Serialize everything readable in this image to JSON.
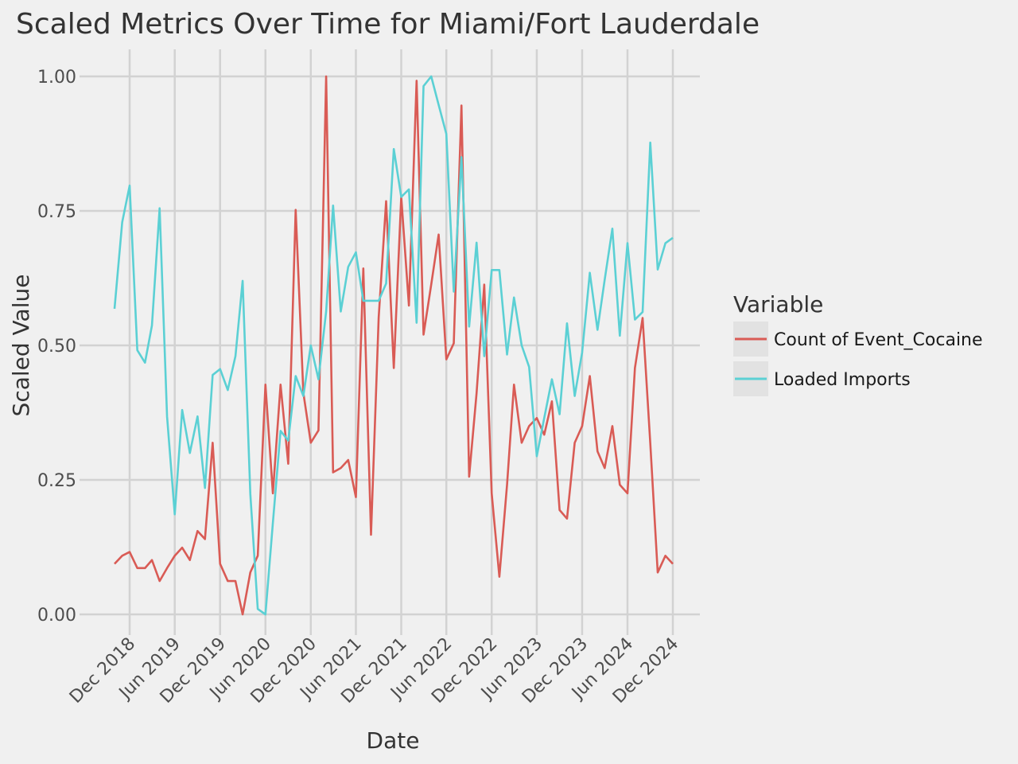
{
  "chart_data": {
    "type": "line",
    "title": "Scaled Metrics Over Time for Miami/Fort Lauderdale",
    "xlabel": "Date",
    "ylabel": "Scaled Value",
    "ylim": [
      0,
      1
    ],
    "yticks": [
      0,
      0.25,
      0.5,
      0.75,
      1
    ],
    "ytick_labels": [
      "0.00",
      "0.25",
      "0.50",
      "0.75",
      "1.00"
    ],
    "xticks": [
      "2018-12-01",
      "2019-06-01",
      "2019-12-01",
      "2020-06-01",
      "2020-12-01",
      "2021-06-01",
      "2021-12-01",
      "2022-06-01",
      "2022-12-01",
      "2023-06-01",
      "2023-12-01",
      "2024-06-01",
      "2024-12-01"
    ],
    "xtick_labels": [
      "Dec 2018",
      "Jun 2019",
      "Dec 2019",
      "Jun 2020",
      "Dec 2020",
      "Jun 2021",
      "Dec 2021",
      "Jun 2022",
      "Dec 2022",
      "Jun 2023",
      "Dec 2023",
      "Jun 2024",
      "Dec 2024"
    ],
    "grid": true,
    "legend": {
      "title": "Variable",
      "position": "right"
    },
    "x": [
      "2018-10-01",
      "2018-11-01",
      "2018-12-01",
      "2019-01-01",
      "2019-02-01",
      "2019-03-01",
      "2019-04-01",
      "2019-05-01",
      "2019-06-01",
      "2019-07-01",
      "2019-08-01",
      "2019-09-01",
      "2019-10-01",
      "2019-11-01",
      "2019-12-01",
      "2020-01-01",
      "2020-02-01",
      "2020-03-01",
      "2020-04-01",
      "2020-05-01",
      "2020-06-01",
      "2020-07-01",
      "2020-08-01",
      "2020-09-01",
      "2020-10-01",
      "2020-11-01",
      "2020-12-01",
      "2021-01-01",
      "2021-02-01",
      "2021-03-01",
      "2021-04-01",
      "2021-05-01",
      "2021-06-01",
      "2021-07-01",
      "2021-08-01",
      "2021-09-01",
      "2021-10-01",
      "2021-11-01",
      "2021-12-01",
      "2022-01-01",
      "2022-02-01",
      "2022-03-01",
      "2022-04-01",
      "2022-05-01",
      "2022-06-01",
      "2022-07-01",
      "2022-08-01",
      "2022-09-01",
      "2022-10-01",
      "2022-11-01",
      "2022-12-01",
      "2023-01-01",
      "2023-02-01",
      "2023-03-01",
      "2023-04-01",
      "2023-05-01",
      "2023-06-01",
      "2023-07-01",
      "2023-08-01",
      "2023-09-01",
      "2023-10-01",
      "2023-11-01",
      "2023-12-01",
      "2024-01-01",
      "2024-02-01",
      "2024-03-01",
      "2024-04-01",
      "2024-05-01",
      "2024-06-01",
      "2024-07-01",
      "2024-08-01",
      "2024-09-01",
      "2024-10-01",
      "2024-11-01",
      "2024-12-01"
    ],
    "series": [
      {
        "name": "Count of Event_Cocaine",
        "color": "#d95b55",
        "values": [
          0.094,
          0.109,
          0.116,
          0.086,
          0.086,
          0.101,
          0.062,
          0.086,
          0.109,
          0.124,
          0.101,
          0.155,
          0.14,
          0.319,
          0.094,
          0.062,
          0.062,
          0.0,
          0.078,
          0.109,
          0.427,
          0.225,
          0.427,
          0.28,
          0.752,
          0.412,
          0.319,
          0.342,
          1.0,
          0.264,
          0.272,
          0.287,
          0.218,
          0.643,
          0.148,
          0.552,
          0.768,
          0.458,
          0.776,
          0.574,
          0.992,
          0.52,
          0.613,
          0.706,
          0.474,
          0.504,
          0.946,
          0.256,
          0.411,
          0.613,
          0.225,
          0.07,
          0.241,
          0.427,
          0.319,
          0.35,
          0.365,
          0.334,
          0.396,
          0.194,
          0.178,
          0.319,
          0.35,
          0.443,
          0.303,
          0.272,
          0.35,
          0.241,
          0.225,
          0.458,
          0.551,
          0.318,
          0.078,
          0.109,
          0.094
        ]
      },
      {
        "name": "Loaded Imports",
        "color": "#5bd0d4",
        "values": [
          0.568,
          0.729,
          0.797,
          0.491,
          0.468,
          0.537,
          0.755,
          0.368,
          0.186,
          0.38,
          0.3,
          0.368,
          0.235,
          0.445,
          0.456,
          0.417,
          0.48,
          0.62,
          0.224,
          0.01,
          0.0,
          0.17,
          0.341,
          0.323,
          0.443,
          0.406,
          0.5,
          0.437,
          0.563,
          0.76,
          0.563,
          0.646,
          0.673,
          0.583,
          0.583,
          0.583,
          0.615,
          0.865,
          0.776,
          0.79,
          0.542,
          0.982,
          1.0,
          0.947,
          0.893,
          0.6,
          0.85,
          0.535,
          0.691,
          0.48,
          0.64,
          0.64,
          0.483,
          0.589,
          0.5,
          0.46,
          0.294,
          0.365,
          0.437,
          0.372,
          0.541,
          0.406,
          0.487,
          0.635,
          0.529,
          0.622,
          0.717,
          0.518,
          0.69,
          0.548,
          0.562,
          0.877,
          0.641,
          0.69,
          0.7
        ]
      }
    ]
  }
}
